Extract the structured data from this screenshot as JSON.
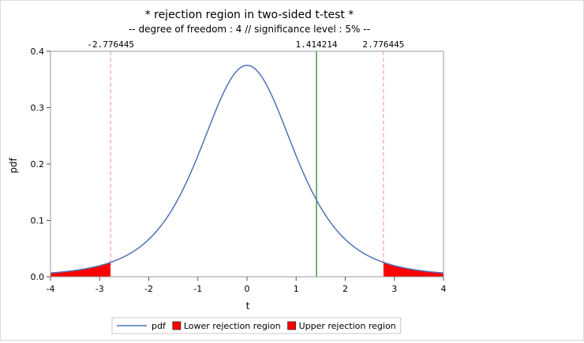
{
  "chart_data": {
    "type": "line",
    "title": "* rejection region in two-sided t-test *",
    "subtitle": "-- degree of freedom : 4 // significance level : 5% --",
    "xlabel": "t",
    "ylabel": "pdf",
    "xlim": [
      -4,
      4
    ],
    "ylim": [
      0,
      0.4
    ],
    "xticks": [
      -4,
      -3,
      -2,
      -1,
      0,
      1,
      2,
      3,
      4
    ],
    "yticks": [
      0.0,
      0.1,
      0.2,
      0.3,
      0.4
    ],
    "ytick_labels": [
      "0.0",
      "0.1",
      "0.2",
      "0.3",
      "0.4"
    ],
    "grid": false,
    "degrees_of_freedom": 4,
    "significance_level": 0.05,
    "series": [
      {
        "name": "pdf",
        "kind": "line",
        "color": "#4f72b5",
        "function": "student_t_pdf",
        "df": 4
      }
    ],
    "regions": [
      {
        "name": "Lower rejection region",
        "from": -4,
        "to": -2.776445,
        "color": "#ff0000"
      },
      {
        "name": "Upper rejection region",
        "from": 2.776445,
        "to": 4,
        "color": "#ff0000"
      }
    ],
    "reference_lines": [
      {
        "label": "-2.776445",
        "x": -2.776445,
        "color": "#f4a8a0",
        "style": "dashed"
      },
      {
        "label": "1.414214",
        "x": 1.414214,
        "color": "#1f7a1f",
        "style": "solid"
      },
      {
        "label": "2.776445",
        "x": 2.776445,
        "color": "#f4a8a0",
        "style": "dashed"
      }
    ],
    "legend": {
      "position": "bottom",
      "entries": [
        {
          "label": "pdf",
          "kind": "line",
          "color": "#4f72b5"
        },
        {
          "label": "Lower rejection region",
          "kind": "patch",
          "color": "#ff0000"
        },
        {
          "label": "Upper rejection region",
          "kind": "patch",
          "color": "#ff0000"
        }
      ]
    }
  }
}
